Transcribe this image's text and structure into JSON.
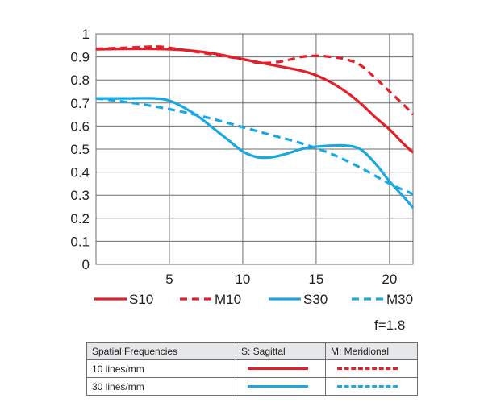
{
  "chart_data": {
    "type": "line",
    "title": "",
    "xlabel": "",
    "ylabel": "",
    "xlim": [
      0,
      21.6
    ],
    "ylim": [
      0,
      1
    ],
    "x_ticks": [
      "5",
      "10",
      "15",
      "20"
    ],
    "y_ticks": [
      "0",
      "0.1",
      "0.2",
      "0.3",
      "0.4",
      "0.5",
      "0.6",
      "0.7",
      "0.8",
      "0.9",
      "1"
    ],
    "grid": true,
    "legend_position": "bottom",
    "series": [
      {
        "name": "S10",
        "color": "#e3202a",
        "dash": "solid",
        "x": [
          0,
          2,
          4,
          6,
          8,
          10,
          12,
          14,
          15,
          16,
          17,
          18,
          19,
          20,
          21,
          21.6
        ],
        "y": [
          0.933,
          0.935,
          0.935,
          0.93,
          0.915,
          0.89,
          0.865,
          0.84,
          0.82,
          0.79,
          0.75,
          0.7,
          0.64,
          0.585,
          0.52,
          0.485
        ]
      },
      {
        "name": "M10",
        "color": "#e3202a",
        "dash": "dashed",
        "x": [
          0,
          2,
          4,
          5,
          6,
          8,
          10,
          11,
          12,
          13,
          14,
          15,
          16,
          17,
          18,
          19,
          20,
          21,
          21.6
        ],
        "y": [
          0.935,
          0.94,
          0.945,
          0.94,
          0.93,
          0.91,
          0.89,
          0.875,
          0.875,
          0.885,
          0.9,
          0.905,
          0.9,
          0.89,
          0.865,
          0.81,
          0.75,
          0.69,
          0.65
        ]
      },
      {
        "name": "S30",
        "color": "#1ba8e0",
        "dash": "solid",
        "x": [
          0,
          2,
          4,
          5,
          6,
          7,
          8,
          9,
          10,
          11,
          12,
          13,
          14,
          15,
          16,
          17,
          18,
          19,
          20,
          21,
          21.6
        ],
        "y": [
          0.72,
          0.72,
          0.72,
          0.71,
          0.68,
          0.64,
          0.59,
          0.54,
          0.49,
          0.465,
          0.465,
          0.48,
          0.5,
          0.51,
          0.515,
          0.515,
          0.5,
          0.44,
          0.36,
          0.29,
          0.245
        ]
      },
      {
        "name": "M30",
        "color": "#1ba8e0",
        "dash": "dashed",
        "x": [
          0,
          2,
          4,
          6,
          8,
          10,
          12,
          14,
          16,
          18,
          20,
          21.6
        ],
        "y": [
          0.72,
          0.705,
          0.685,
          0.66,
          0.63,
          0.595,
          0.56,
          0.525,
          0.48,
          0.42,
          0.35,
          0.305
        ]
      }
    ]
  },
  "aperture": "f=1.8",
  "key_table": {
    "headers": [
      "Spatial Frequencies",
      "S: Sagittal",
      "M: Meridional"
    ],
    "rows": [
      {
        "label": "10 lines/mm",
        "color": "#e3202a"
      },
      {
        "label": "30 lines/mm",
        "color": "#1ba8e0"
      }
    ]
  }
}
